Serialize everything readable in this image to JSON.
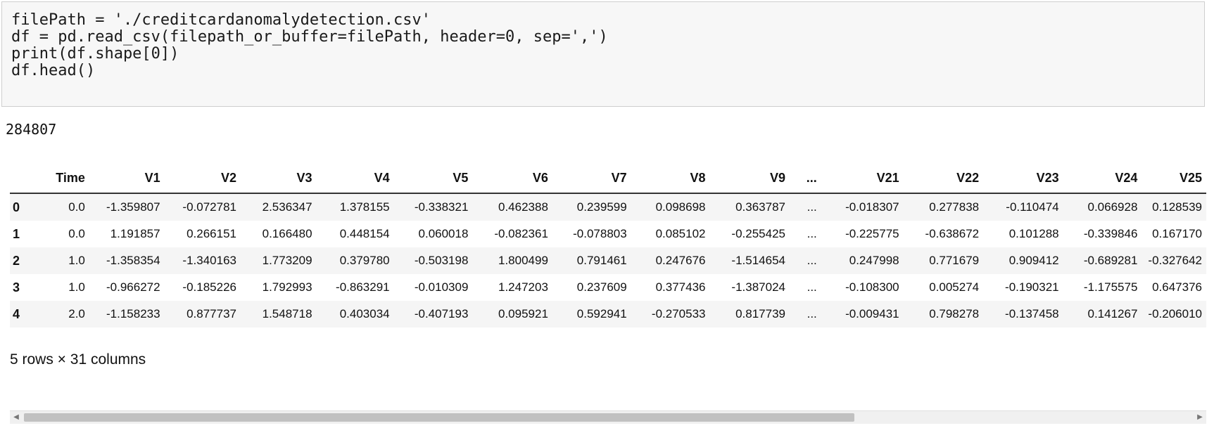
{
  "code": {
    "lines": [
      "filePath = './creditcardanomalydetection.csv'",
      "df = pd.read_csv(filepath_or_buffer=filePath, header=0, sep=',')",
      "print(df.shape[0])",
      "df.head()"
    ]
  },
  "output": {
    "count": "284807",
    "summary": "5 rows × 31 columns"
  },
  "table": {
    "columns": [
      "",
      "Time",
      "V1",
      "V2",
      "V3",
      "V4",
      "V5",
      "V6",
      "V7",
      "V8",
      "V9",
      "...",
      "V21",
      "V22",
      "V23",
      "V24",
      "V25"
    ],
    "rows": [
      {
        "index": "0",
        "cells": [
          "0.0",
          "-1.359807",
          "-0.072781",
          "2.536347",
          "1.378155",
          "-0.338321",
          "0.462388",
          "0.239599",
          "0.098698",
          "0.363787",
          "...",
          "-0.018307",
          "0.277838",
          "-0.110474",
          "0.066928",
          "0.128539"
        ]
      },
      {
        "index": "1",
        "cells": [
          "0.0",
          "1.191857",
          "0.266151",
          "0.166480",
          "0.448154",
          "0.060018",
          "-0.082361",
          "-0.078803",
          "0.085102",
          "-0.255425",
          "...",
          "-0.225775",
          "-0.638672",
          "0.101288",
          "-0.339846",
          "0.167170"
        ]
      },
      {
        "index": "2",
        "cells": [
          "1.0",
          "-1.358354",
          "-1.340163",
          "1.773209",
          "0.379780",
          "-0.503198",
          "1.800499",
          "0.791461",
          "0.247676",
          "-1.514654",
          "...",
          "0.247998",
          "0.771679",
          "0.909412",
          "-0.689281",
          "-0.327642"
        ]
      },
      {
        "index": "3",
        "cells": [
          "1.0",
          "-0.966272",
          "-0.185226",
          "1.792993",
          "-0.863291",
          "-0.010309",
          "1.247203",
          "0.237609",
          "0.377436",
          "-1.387024",
          "...",
          "-0.108300",
          "0.005274",
          "-0.190321",
          "-1.175575",
          "0.647376"
        ]
      },
      {
        "index": "4",
        "cells": [
          "2.0",
          "-1.158233",
          "0.877737",
          "1.548718",
          "0.403034",
          "-0.407193",
          "0.095921",
          "0.592941",
          "-0.270533",
          "0.817739",
          "...",
          "-0.009431",
          "0.798278",
          "-0.137458",
          "0.141267",
          "-0.206010"
        ]
      }
    ]
  },
  "scrollbar": {
    "left_arrow_icon": "triangle-left-icon",
    "right_arrow_icon": "triangle-right-icon"
  }
}
